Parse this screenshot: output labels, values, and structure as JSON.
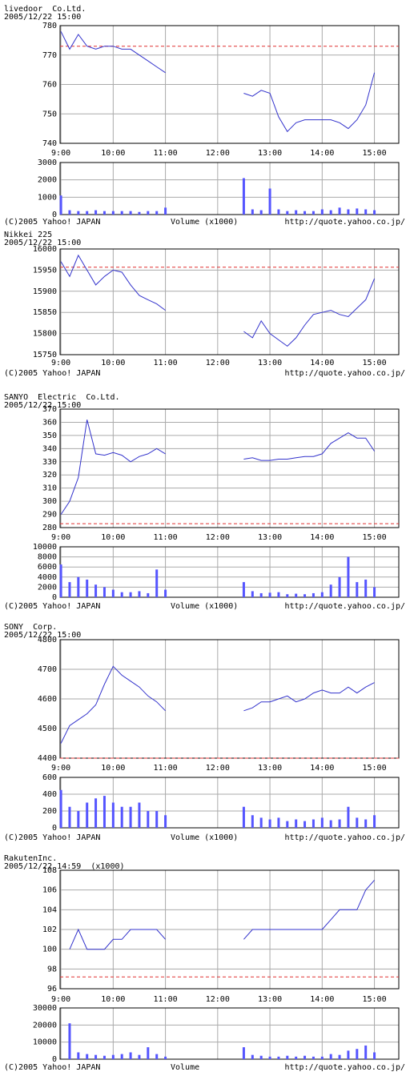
{
  "chart_data": [
    {
      "type": "line",
      "title": "livedoor  Co.Ltd.",
      "subtitle": "2005/12/22 15:00",
      "color": "#3333cc",
      "xlim": [
        539,
        928
      ],
      "xticks": [
        {
          "value": 540,
          "label": "9:00"
        },
        {
          "value": 600,
          "label": "10:00"
        },
        {
          "value": 660,
          "label": "11:00"
        },
        {
          "value": 720,
          "label": "12:00"
        },
        {
          "value": 780,
          "label": "13:00"
        },
        {
          "value": 840,
          "label": "14:00"
        },
        {
          "value": 900,
          "label": "15:00"
        }
      ],
      "ylim": [
        740,
        780
      ],
      "yticks": [
        740,
        750,
        760,
        770,
        780
      ],
      "reference_value": 773,
      "x": [
        540,
        550,
        560,
        570,
        580,
        590,
        600,
        610,
        620,
        630,
        640,
        650,
        660,
        700,
        750,
        760,
        770,
        780,
        790,
        800,
        810,
        820,
        830,
        840,
        850,
        860,
        870,
        880,
        890,
        900
      ],
      "values": [
        778,
        772,
        777,
        773,
        772,
        773,
        773,
        772,
        772,
        770,
        768,
        766,
        764,
        null,
        757,
        756,
        758,
        757,
        749,
        744,
        747,
        748,
        748,
        748,
        748,
        747,
        745,
        748,
        753,
        764
      ],
      "volume": {
        "type": "bar",
        "color": "#5555ff",
        "ylim": [
          0,
          3000
        ],
        "yticks": [
          0,
          1000,
          2000,
          3000
        ],
        "values": [
          1100,
          250,
          200,
          200,
          250,
          200,
          200,
          200,
          200,
          150,
          200,
          200,
          400,
          null,
          2100,
          300,
          250,
          1500,
          300,
          200,
          250,
          200,
          200,
          300,
          250,
          400,
          300,
          350,
          300,
          250
        ]
      },
      "credit": "(C)2005 Yahoo! JAPAN",
      "volume_label": "Volume (x1000)",
      "url": "http://quote.yahoo.co.jp/"
    },
    {
      "type": "line",
      "title": "Nikkei 225",
      "subtitle": "2005/12/22 15:00",
      "color": "#3333cc",
      "xlim": [
        539,
        928
      ],
      "xticks": [
        {
          "value": 540,
          "label": "9:00"
        },
        {
          "value": 600,
          "label": "10:00"
        },
        {
          "value": 660,
          "label": "11:00"
        },
        {
          "value": 720,
          "label": "12:00"
        },
        {
          "value": 780,
          "label": "13:00"
        },
        {
          "value": 840,
          "label": "14:00"
        },
        {
          "value": 900,
          "label": "15:00"
        }
      ],
      "ylim": [
        15750,
        16000
      ],
      "yticks": [
        15750,
        15800,
        15850,
        15900,
        15950,
        16000
      ],
      "reference_value": 15957,
      "x": [
        540,
        550,
        560,
        570,
        580,
        590,
        600,
        610,
        620,
        630,
        640,
        650,
        660,
        700,
        750,
        760,
        770,
        780,
        790,
        800,
        810,
        820,
        830,
        840,
        850,
        860,
        870,
        880,
        890,
        900
      ],
      "values": [
        15970,
        15935,
        15985,
        15950,
        15915,
        15935,
        15950,
        15945,
        15915,
        15890,
        15880,
        15870,
        15855,
        null,
        15805,
        15790,
        15830,
        15800,
        15785,
        15770,
        15790,
        15820,
        15845,
        15850,
        15855,
        15845,
        15840,
        15860,
        15880,
        15930
      ],
      "credit": "(C)2005 Yahoo! JAPAN",
      "url": "http://quote.yahoo.co.jp/"
    },
    {
      "type": "line",
      "title": "SANYO  Electric  Co.Ltd.",
      "subtitle": "2005/12/22 15:00",
      "color": "#3333cc",
      "xlim": [
        539,
        928
      ],
      "xticks": [
        {
          "value": 540,
          "label": "9:00"
        },
        {
          "value": 600,
          "label": "10:00"
        },
        {
          "value": 660,
          "label": "11:00"
        },
        {
          "value": 720,
          "label": "12:00"
        },
        {
          "value": 780,
          "label": "13:00"
        },
        {
          "value": 840,
          "label": "14:00"
        },
        {
          "value": 900,
          "label": "15:00"
        }
      ],
      "ylim": [
        280,
        370
      ],
      "yticks": [
        280,
        290,
        300,
        310,
        320,
        330,
        340,
        350,
        360,
        370
      ],
      "reference_value": 283,
      "x": [
        540,
        550,
        560,
        570,
        580,
        590,
        600,
        610,
        620,
        630,
        640,
        650,
        660,
        700,
        750,
        760,
        770,
        780,
        790,
        800,
        810,
        820,
        830,
        840,
        850,
        860,
        870,
        880,
        890,
        900
      ],
      "values": [
        290,
        300,
        318,
        362,
        336,
        335,
        337,
        335,
        330,
        334,
        336,
        340,
        336,
        null,
        332,
        333,
        331,
        331,
        332,
        332,
        333,
        334,
        334,
        336,
        344,
        348,
        352,
        348,
        348,
        338
      ],
      "volume": {
        "type": "bar",
        "color": "#5555ff",
        "ylim": [
          0,
          10000
        ],
        "yticks": [
          0,
          2000,
          4000,
          6000,
          8000,
          10000
        ],
        "values": [
          6500,
          3000,
          4000,
          3500,
          2500,
          2000,
          1500,
          1000,
          1000,
          1200,
          800,
          5500,
          1500,
          null,
          3000,
          1200,
          800,
          900,
          1000,
          600,
          700,
          600,
          800,
          1000,
          2500,
          4000,
          8000,
          3000,
          3500,
          2000
        ]
      },
      "credit": "(C)2005 Yahoo! JAPAN",
      "volume_label": "Volume (x1000)",
      "url": "http://quote.yahoo.co.jp/"
    },
    {
      "type": "line",
      "title": "SONY  Corp.",
      "subtitle": "2005/12/22 15:00",
      "color": "#3333cc",
      "xlim": [
        539,
        928
      ],
      "xticks": [
        {
          "value": 540,
          "label": "9:00"
        },
        {
          "value": 600,
          "label": "10:00"
        },
        {
          "value": 660,
          "label": "11:00"
        },
        {
          "value": 720,
          "label": "12:00"
        },
        {
          "value": 780,
          "label": "13:00"
        },
        {
          "value": 840,
          "label": "14:00"
        },
        {
          "value": 900,
          "label": "15:00"
        }
      ],
      "ylim": [
        4400,
        4800
      ],
      "yticks": [
        4400,
        4500,
        4600,
        4700,
        4800
      ],
      "reference_value": 4400,
      "x": [
        540,
        550,
        560,
        570,
        580,
        590,
        600,
        610,
        620,
        630,
        640,
        650,
        660,
        700,
        750,
        760,
        770,
        780,
        790,
        800,
        810,
        820,
        830,
        840,
        850,
        860,
        870,
        880,
        890,
        900
      ],
      "values": [
        4450,
        4510,
        4530,
        4550,
        4580,
        4650,
        4710,
        4680,
        4660,
        4640,
        4610,
        4590,
        4560,
        null,
        4560,
        4570,
        4590,
        4590,
        4600,
        4610,
        4590,
        4600,
        4620,
        4630,
        4620,
        4620,
        4640,
        4620,
        4640,
        4655
      ],
      "volume": {
        "type": "bar",
        "color": "#5555ff",
        "ylim": [
          0,
          600
        ],
        "yticks": [
          0,
          200,
          400,
          600
        ],
        "values": [
          450,
          250,
          200,
          300,
          350,
          380,
          300,
          250,
          250,
          300,
          200,
          200,
          150,
          null,
          250,
          150,
          120,
          100,
          120,
          80,
          100,
          80,
          100,
          120,
          90,
          100,
          250,
          120,
          100,
          150
        ]
      },
      "credit": "(C)2005 Yahoo! JAPAN",
      "volume_label": "Volume (x1000)",
      "url": "http://quote.yahoo.co.jp/"
    },
    {
      "type": "line",
      "title": "RakutenInc.",
      "subtitle": "2005/12/22 14:59  (x1000)",
      "color": "#3333cc",
      "xlim": [
        539,
        928
      ],
      "xticks": [
        {
          "value": 540,
          "label": "9:00"
        },
        {
          "value": 600,
          "label": "10:00"
        },
        {
          "value": 660,
          "label": "11:00"
        },
        {
          "value": 720,
          "label": "12:00"
        },
        {
          "value": 780,
          "label": "13:00"
        },
        {
          "value": 840,
          "label": "14:00"
        },
        {
          "value": 900,
          "label": "15:00"
        }
      ],
      "ylim": [
        96,
        108
      ],
      "yticks": [
        96,
        98,
        100,
        102,
        104,
        106,
        108
      ],
      "reference_value": 97.2,
      "x": [
        540,
        550,
        560,
        570,
        580,
        590,
        600,
        610,
        620,
        630,
        640,
        650,
        660,
        700,
        750,
        760,
        770,
        780,
        790,
        800,
        810,
        820,
        830,
        840,
        850,
        860,
        870,
        880,
        890,
        900
      ],
      "values": [
        null,
        100,
        102,
        100,
        100,
        100,
        101,
        101,
        102,
        102,
        102,
        102,
        101,
        null,
        101,
        102,
        102,
        102,
        102,
        102,
        102,
        102,
        102,
        102,
        103,
        104,
        104,
        104,
        106,
        107
      ],
      "volume": {
        "type": "bar",
        "color": "#5555ff",
        "ylim": [
          0,
          30000
        ],
        "yticks": [
          0,
          10000,
          20000,
          30000
        ],
        "values": [
          null,
          21000,
          4000,
          3000,
          2500,
          2000,
          2500,
          3000,
          4000,
          2500,
          7000,
          3000,
          1500,
          null,
          7000,
          2500,
          2000,
          1500,
          1500,
          2000,
          1500,
          2000,
          1500,
          1500,
          3000,
          2500,
          5000,
          6000,
          8000,
          4000
        ]
      },
      "credit": "(C)2005 Yahoo! JAPAN",
      "volume_label": "Volume",
      "url": "http://quote.yahoo.co.jp/"
    }
  ]
}
